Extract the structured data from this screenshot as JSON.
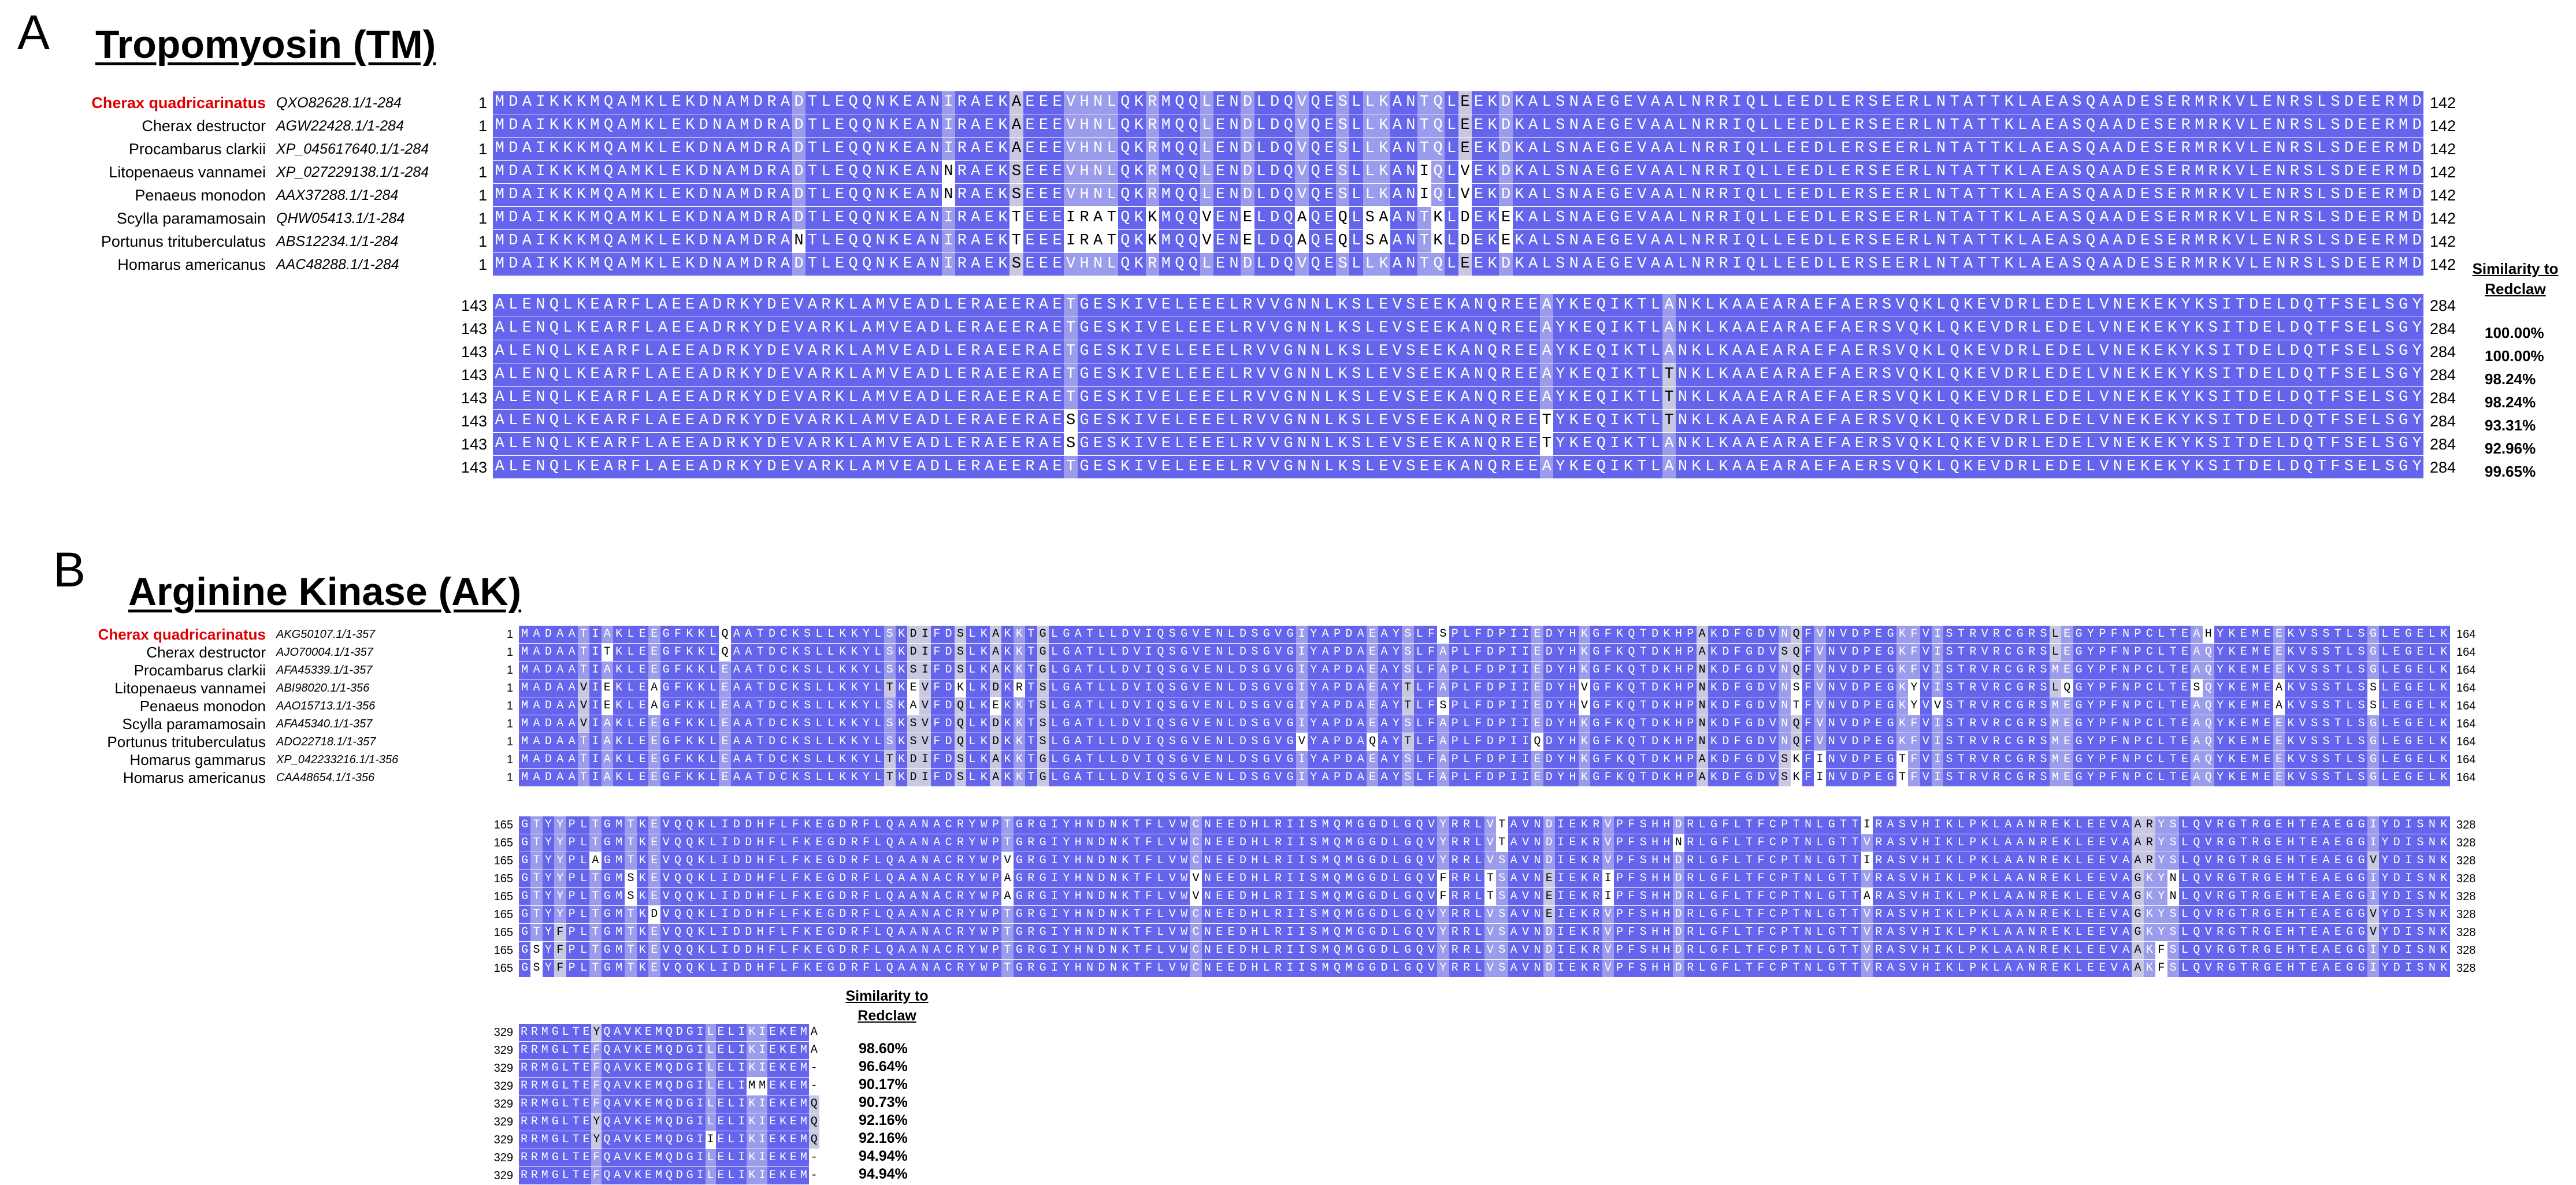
{
  "panelA": {
    "label": "A",
    "title": "Tropomyosin (TM)",
    "similarity_header": [
      "Similarity to",
      "Redclaw"
    ],
    "species": [
      {
        "name": "Cherax quadricarinatus",
        "accession": "QXO82628.1/1-284",
        "highlight": true,
        "similarity": ""
      },
      {
        "name": "Cherax destructor",
        "accession": "AGW22428.1/1-284",
        "highlight": false,
        "similarity": "100.00%"
      },
      {
        "name": "Procambarus clarkii",
        "accession": "XP_045617640.1/1-284",
        "highlight": false,
        "similarity": "100.00%"
      },
      {
        "name": "Litopenaeus vannamei",
        "accession": "XP_027229138.1/1-284",
        "highlight": false,
        "similarity": "98.24%"
      },
      {
        "name": "Penaeus monodon",
        "accession": "AAX37288.1/1-284",
        "highlight": false,
        "similarity": "98.24%"
      },
      {
        "name": "Scylla paramamosain",
        "accession": "QHW05413.1/1-284",
        "highlight": false,
        "similarity": "93.31%"
      },
      {
        "name": "Portunus trituberculatus",
        "accession": "ABS12234.1/1-284",
        "highlight": false,
        "similarity": "92.96%"
      },
      {
        "name": "Homarus americanus",
        "accession": "AAC48288.1/1-284",
        "highlight": false,
        "similarity": "99.65%"
      }
    ],
    "blocks": [
      {
        "start": "1",
        "end": "142",
        "rows": [
          "MDAIKKKMQAMKLEKDNAMDRADTLEQQNKEANIRAEKAEEEVHNLQKRMQQLENDLDQVQESLLKANTQLEEKDKALSNAEGEVAALNRRIQLLEEDLERSEERLNTATTKLAEASQAADESERMRKVLENRSLSDEERMD",
          "MDAIKKKMQAMKLEKDNAMDRADTLEQQNKEANIRAEKAEEEVHNLQKRMQQLENDLDQVQESLLKANTQLEEKDKALSNAEGEVAALNRRIQLLEEDLERSEERLNTATTKLAEASQAADESERMRKVLENRSLSDEERMD",
          "MDAIKKKMQAMKLEKDNAMDRADTLEQQNKEANIRAEKAEEEVHNLQKRMQQLENDLDQVQESLLKANTQLEEKDKALSNAEGEVAALNRRIQLLEEDLERSEERLNTATTKLAEASQAADESERMRKVLENRSLSDEERMD",
          "MDAIKKKMQAMKLEKDNAMDRADTLEQQNKEANNRAEKSEEEVHNLQKRMQQLENDLDQVQESLLKANIQLVEKDKALSNAEGEVAALNRRIQLLEEDLERSEERLNTATTKLAEASQAADESERMRKVLENRSLSDEERMD",
          "MDAIKKKMQAMKLEKDNAMDRADTLEQQNKEANNRAEKSEEEVHNLQKRMQQLENDLDQVQESLLKANIQLVEKDKALSNAEGEVAALNRRIQLLEEDLERSEERLNTATTKLAEASQAADESERMRKVLENRSLSDEERMD",
          "MDAIKKKMQAMKLEKDNAMDRADTLEQQNKEANIRAEKTEEEIRATQKKMQQVENELDQAQEQLSAANTKLDEKEKALSNAEGEVAALNRRIQLLEEDLERSEERLNTATTKLAEASQAADESERMRKVLENRSLSDEERMD",
          "MDAIKKKMQAMKLEKDNAMDRANTLEQQNKEANIRAEKTEEEIRATQKKMQQVENELDQAQEQLSAANTKLDEKEKALSNAEGEVAALNRRIQLLEEDLERSEERLNTATTKLAEASQAADESERMRKVLENRSLSDEERMD",
          "MDAIKKKMQAMKLEKDNAMDRADTLEQQNKEANIRAEKSEEEVHNLQKRMQQLENDLDQVQESLLKANTQLEEKDKALSNAEGEVAALNRRIQLLEEDLERSEERLNTATTKLAEASQAADESERMRKVLENRSLSDEERMD"
        ]
      },
      {
        "start": "143",
        "end": "284",
        "rows": [
          "ALENQLKEARFLAEEADRKYDEVARKLAMVEADLERAEERAETGESKIVELEEELRVVGNNLKSLEVSEEKANQREEAYKEQIKTLANKLKAAEARAEFAERSVQKLQKEVDRLEDELVNEKEKYKSITDELDQTFSELSGY",
          "ALENQLKEARFLAEEADRKYDEVARKLAMVEADLERAEERAETGESKIVELEEELRVVGNNLKSLEVSEEKANQREEAYKEQIKTLANKLKAAEARAEFAERSVQKLQKEVDRLEDELVNEKEKYKSITDELDQTFSELSGY",
          "ALENQLKEARFLAEEADRKYDEVARKLAMVEADLERAEERAETGESKIVELEEELRVVGNNLKSLEVSEEKANQREEAYKEQIKTLANKLKAAEARAEFAERSVQKLQKEVDRLEDELVNEKEKYKSITDELDQTFSELSGY",
          "ALENQLKEARFLAEEADRKYDEVARKLAMVEADLERAEERAETGESKIVELEEELRVVGNNLKSLEVSEEKANQREEAYKEQIKTLTNKLKAAEARAEFAERSVQKLQKEVDRLEDELVNEKEKYKSITDELDQTFSELSGY",
          "ALENQLKEARFLAEEADRKYDEVARKLAMVEADLERAEERAETGESKIVELEEELRVVGNNLKSLEVSEEKANQREEAYKEQIKTLTNKLKAAEARAEFAERSVQKLQKEVDRLEDELVNEKEKYKSITDELDQTFSELSGY",
          "ALENQLKEARFLAEEADRKYDEVARKLAMVEADLERAEERAESGESKIVELEEELRVVGNNLKSLEVSEEKANQREETYKEQIKTLTNKLKAAEARAEFAERSVQKLQKEVDRLEDELVNEKEKYKSITDELDQTFSELSGY",
          "ALENQLKEARFLAEEADRKYDEVARKLAMVEADLERAEERAESGESKIVELEEELRVVGNNLKSLEVSEEKANQREETYKEQIKTLANKLKAAEARAEFAERSVQKLQKEVDRLEDELVNEKEKYKSITDELDQTFSELSGY",
          "ALENQLKEARFLAEEADRKYDEVARKLAMVEADLERAEERAETGESKIVELEEELRVVGNNLKSLEVSEEKANQREEAYKEQIKTLANKLKAAEARAEFAERSVQKLQKEVDRLEDELVNEKEKYKSITDELDQTFSELSGY"
        ]
      }
    ]
  },
  "panelB": {
    "label": "B",
    "title": "Arginine Kinase (AK)",
    "similarity_header": [
      "Similarity to",
      "Redclaw"
    ],
    "species": [
      {
        "name": "Cherax quadricarinatus",
        "accession": "AKG50107.1/1-357",
        "highlight": true,
        "similarity": "98.60%"
      },
      {
        "name": "Cherax destructor",
        "accession": "AJO70004.1/1-357",
        "highlight": false,
        "similarity": "96.64%"
      },
      {
        "name": "Procambarus clarkii",
        "accession": "AFA45339.1/1-357",
        "highlight": false,
        "similarity": "90.17%"
      },
      {
        "name": "Litopenaeus vannamei",
        "accession": "ABI98020.1/1-356",
        "highlight": false,
        "similarity": "90.73%"
      },
      {
        "name": "Penaeus monodon",
        "accession": "AAO15713.1/1-356",
        "highlight": false,
        "similarity": "92.16%"
      },
      {
        "name": "Scylla paramamosain",
        "accession": "AFA45340.1/1-357",
        "highlight": false,
        "similarity": "92.16%"
      },
      {
        "name": "Portunus trituberculatus",
        "accession": "ADO22718.1/1-357",
        "highlight": false,
        "similarity": "94.94%"
      },
      {
        "name": "Homarus gammarus",
        "accession": "XP_042233216.1/1-356",
        "highlight": false,
        "similarity": "94.94%"
      },
      {
        "name": "Homarus americanus",
        "accession": "CAA48654.1/1-356",
        "highlight": false,
        "similarity": ""
      }
    ],
    "blocks": [
      {
        "start": "1",
        "end": "164",
        "rows": [
          "MADAATIAKLEEGFKKLQAATDCKSLLKKYLSKDIFDSLKAKKTGLGATLLDVIQSGVENLDSGVGIYAPDAEAYSLFSPLFDPIIEDYHKGFKQTDKHPAKDFGDVNQFVNVDPEGKFVISTRVRCGRSLEGYPFNPCLTEAHYKEMEEKVSSTLSGLEGELK",
          "MADAATITKLEEGFKKLQAATDCKSLLKKYLSKDIFDSLKAKKTGLGATLLDVIQSGVENLDSGVGIYAPDAEAYSLFAPLFDPIIEDYHKGFKQTDKHPAKDFGDVSQFVNVDPEGKFVISTRVRCGRSLEGYPFNPCLTEAQYKEMEEKVSSTLSGLEGELK",
          "MADAATIAKLEEGFKKLEAATDCKSLLKKYLSKSIFDSLKAKKTGLGATLLDVIQSGVENLDSGVGIYAPDAEAYSLFAPLFDPIIEDYHKGFKQTDKHPNKDFGDVNQFVNVDPEGKFVISTRVRCGRSMEGYPFNPCLTEAQYKEMEEKVSSTLSGLEGELK",
          "MADAAVIEKLEAGFKKLEAATDCKSLLKKYLTKEVFDKLKDKRTSLGATLLDVIQSGVENLDSGVGIYAPDAEAYTLFAPLFDPIIEDYHVGFKQTDKHPNKDFGDVNSFVNVDPEGKYVISTRVRCGRSLQGYPFNPCLTESQYKEMEAKVSSTLSSLEGELK",
          "MADAAVIEKLEAGFKKLEAATDCKSLLKKYLSKAVFDQLKEKKTSLGATLLDVIQSGVENLDSGVGIYAPDAEAYTLFSPLFDPIIEDYHVGFKQTDKHPNKDFGDVNTFVNVDPEGKYVVSTRVRCGRSMEGYPFNPCLTEAQYKEMEAKVSSTLSSLEGELK",
          "MADAAVIAKLEEGFKKLEAATDCKSLLKKYLSKSVFDQLKDKKTSLGATLLDVIQSGVENLDSGVGIYAPDAEAYSLFAPLFDPIIEDYHKGFKQTDKHPNKDFGDVNQFVNVDPEGKFVISTRVRCGRSMEGYPFNPCLTEAQYKEMEEKVSSTLSGLEGELK",
          "MADAATIAKLEEGFKKLEAATDCKSLLKKYLSKSVFDQLKDKKTSLGATLLDVIQSGVENLDSGVGVYAPDAQAYTLFAPLFDPIIQDYHKGFKQTDKHPNKDFGDVNQFVNVDPEGKFVISTRVRCGRSMEGYPFNPCLTEAQYKEMEEKVSSTLSGLEGELK",
          "MADAATIAKLEEGFKKLEAATDCKSLLKKYLTKDIFDSLKAKKTGLGATLLDVIQSGVENLDSGVGIYAPDAEAYSLFAPLFDPIIEDYHKGFKQTDKHPAKDFGDVSKFINVDPEGTFVISTRVRCGRSMEGYPFNPCLTEAQYKEMEEKVSSTLSGLEGELK",
          "MADAATIAKLEEGFKKLEAATDCKSLLKKYLTKDIFDSLKAKKTGLGATLLDVIQSGVENLDSGVGIYAPDAEAYSLFAPLFDPIIEDYHKGFKQTDKHPAKDFGDVSKFINVDPEGTFVISTRVRCGRSMEGYPFNPCLTEAQYKEMEEKVSSTLSGLEGELK"
        ]
      },
      {
        "start": "165",
        "end": "328",
        "rows": [
          "GTYYPLTGMTKEVQQKLIDDHFLFKEGDRFLQAANACRYWPTGRGIYHNDNKTFLVWCNEEDHLRIISMQMGGDLGQVYRRLVTAVNDIEKRVPFSHHDRLGFLTFCPTNLGTTIRASVHIKLPKLAANREKLEEVAARYSLQVRGTRGEHTEAEGGIYDISNK",
          "GTYYPLTGMTKEVQQKLIDDHFLFKEGDRFLQAANACRYWPTGRGIYHNDNKTFLVWCNEEDHLRIISMQMGGDLGQVYRRLVTAVNDIEKRVPFSHHNRLGFLTFCPTNLGTTVRASVHIKLPKLAANREKLEEVAARYSLQVRGTRGEHTEAEGGIYDISNK",
          "GTYYPLAGMTKEVQQKLIDDHFLFKEGDRFLQAANACRYWPVGRGIYHNDNKTFLVWCNEEDHLRIISMQMGGDLGQVYRRLVSAVNDIEKRVPFSHHDRLGFLTFCPTNLGTTIRASVHIKLPKLAANREKLEEVAARYSLQVRGTRGEHTEAEGGVYDISNK",
          "GTYYPLTGMSKEVQQKLIDDHFLFKEGDRFLQAANACRYWPAGRGIYHNDNKTFLVWVNEEDHLRIISMQMGGDLGQVFRRLTSAVNEIEKRIPFSHHDRLGFLTFCPTNLGTTVRASVHIKLPKLAANREKLEEVAGKYNLQVRGTRGEHTEAEGGIYDISNK",
          "GTYYPLTGMSKEVQQKLIDDHFLFKEGDRFLQAANACRYWPAGRGIYHNDNKTFLVWVNEEDHLRIISMQMGGDLGQVFRRLTSAVNEIEKRIPFSHHDRLGFLTFCPTNLGTTARASVHIKLPKLAANREKLEEVAGKYNLQVRGTRGEHTEAEGGIYDISNK",
          "GTYYPLTGMTKDVQQKLIDDHFLFKEGDRFLQAANACRYWPTGRGIYHNDNKTFLVWCNEEDHLRIISMQMGGDLGQVYRRLVSAVNEIEKRVPFSHHDRLGFLTFCPTNLGTTVRASVHIKLPKLAANREKLEEVAGKYSLQVRGTRGEHTEAEGGVYDISNK",
          "GTYFPLTGMTKEVQQKLIDDHFLFKEGDRFLQAANACRYWPTGRGIYHNDNKTFLVWCNEEDHLRIISMQMGGDLGQVYRRLVSAVNDIEKRVPFSHHDRLGFLTFCPTNLGTTVRASVHIKLPKLAANREKLEEVAGKYSLQVRGTRGEHTEAEGGVYDISNK",
          "GSYFPLTGMTKEVQQKLIDDHFLFKEGDRFLQAANACRYWPTGRGIYHNDNKTFLVWCNEEDHLRIISMQMGGDLGQVYRRLVSAVNDIEKRVPFSHHDRLGFLTFCPTNLGTTVRASVHIKLPKLAANREKLEEVAAKFSLQVRGTRGEHTEAEGGIYDISNK",
          "GSYFPLTGMTKEVQQKLIDDHFLFKEGDRFLQAANACRYWPTGRGIYHNDNKTFLVWCNEEDHLRIISMQMGGDLGQVYRRLVSAVNDIEKRVPFSHHDRLGFLTFCPTNLGTTVRASVHIKLPKLAANREKLEEVAAKFSLQVRGTRGEHTEAEGGIYDISNK"
        ]
      },
      {
        "start": "329",
        "end": "",
        "rows": [
          "RRMGLTEYQAVKEMQDGILELIKIEKEMA",
          "RRMGLTEFQAVKEMQDGILELIKIEKEMA",
          "RRMGLTEFQAVKEMQDGILELIKIEKEM-",
          "RRMGLTEFQAVKEMQDGILELIMMEKEM-",
          "RRMGLTEFQAVKEMQDGILELIKIEKEMQ",
          "RRMGLTEYQAVKEMQDGILELIKIEKEMQ",
          "RRMGLTEYQAVKEMQDGIIELIKIEKEMQ",
          "RRMGLTEFQAVKEMQDGILELIKIEKEM-",
          "RRMGLTEFQAVKEMQDGILELIKIEKEM-"
        ]
      }
    ]
  }
}
